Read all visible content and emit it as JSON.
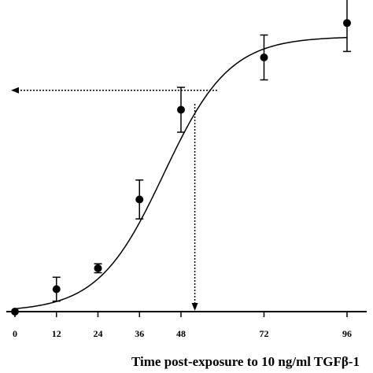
{
  "chart_data": {
    "type": "scatter",
    "title": "",
    "xlabel": "Time post-exposure to 10 ng/ml TGFβ-1",
    "ylabel": "",
    "xlim": [
      0,
      96
    ],
    "ylim": [
      0,
      1.0
    ],
    "x_ticks": [
      0,
      12,
      24,
      36,
      48,
      72,
      96
    ],
    "x_tick_labels": [
      "0",
      "12",
      "24",
      "36",
      "48",
      "72",
      "96"
    ],
    "series": [
      {
        "name": "",
        "x": [
          0,
          12,
          24,
          36,
          48,
          72,
          96
        ],
        "y": [
          0.0,
          0.075,
          0.145,
          0.375,
          0.675,
          0.85,
          0.965
        ],
        "error": [
          0.0,
          0.04,
          0.015,
          0.065,
          0.075,
          0.075,
          0.095
        ]
      }
    ],
    "fit_curve": {
      "type": "sigmoid",
      "bottom": 0.0,
      "top": 0.92,
      "x50": 43,
      "slope": 9.5,
      "x_start": 0,
      "x_end": 96
    },
    "guide_lines": {
      "horizontal_y": 0.74,
      "vertical_x": 52
    },
    "grid": false,
    "legend": "none"
  }
}
